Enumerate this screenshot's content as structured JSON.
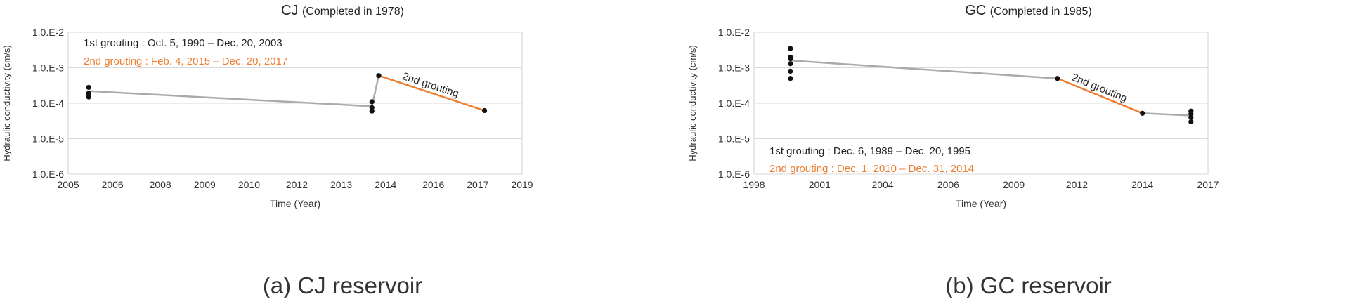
{
  "chart_data": [
    {
      "type": "line",
      "title": "CJ",
      "subtitle": "(Completed in 1978)",
      "caption": "(a) CJ reservoir",
      "xlabel": "Time (Year)",
      "ylabel": "Hydraulic conductivity (cm/s)",
      "x_ticks": [
        "2005",
        "2006",
        "2008",
        "2009",
        "2010",
        "2012",
        "2013",
        "2014",
        "2016",
        "2017",
        "2019"
      ],
      "y_ticks": [
        "1.0.E-6",
        "1.0.E-5",
        "1.0.E-4",
        "1.0.E-3",
        "1.0.E-2"
      ],
      "y_scale": "log",
      "ylim": [
        1e-06,
        0.01
      ],
      "grid": "horizontal",
      "annotation_lines": [
        {
          "text": "1st grouting : Oct. 5, 1990 – Dec. 20, 2003",
          "color": "#222222"
        },
        {
          "text": "2nd grouting : Feb. 4, 2015 – Dec. 20, 2017",
          "color": "#ed7d31"
        }
      ],
      "segment_label": "2nd grouting",
      "points": [
        {
          "x": "2005.6",
          "y": 0.00028
        },
        {
          "x": "2005.6",
          "y": 0.00019
        },
        {
          "x": "2005.6",
          "y": 0.00015
        },
        {
          "x": "2013.9",
          "y": 0.00011
        },
        {
          "x": "2013.9",
          "y": 7.5e-05
        },
        {
          "x": "2013.9",
          "y": 6e-05
        },
        {
          "x": "2014.1",
          "y": 0.0006
        },
        {
          "x": "2017.2",
          "y": 6.2e-05
        }
      ],
      "series": [
        {
          "color": "#aaaaaa",
          "points": [
            [
              "2005.6",
              0.00022
            ],
            [
              "2013.9",
              8.2e-05
            ],
            [
              "2014.1",
              0.0006
            ]
          ]
        },
        {
          "color": "#ed7d31",
          "points": [
            [
              "2014.1",
              0.0006
            ],
            [
              "2017.2",
              6.2e-05
            ]
          ]
        }
      ]
    },
    {
      "type": "line",
      "title": "GC",
      "subtitle": "(Completed in 1985)",
      "caption": "(b) GC reservoir",
      "xlabel": "Time (Year)",
      "ylabel": "Hydraulic conductivity (cm/s)",
      "x_ticks": [
        "1998",
        "2001",
        "2004",
        "2006",
        "2009",
        "2012",
        "2014",
        "2017"
      ],
      "y_ticks": [
        "1.0.E-6",
        "1.0.E-5",
        "1.0.E-4",
        "1.0.E-3",
        "1.0.E-2"
      ],
      "y_scale": "log",
      "ylim": [
        1e-06,
        0.01
      ],
      "grid": "horizontal",
      "annotation_lines": [
        {
          "text": "1st grouting : Dec. 6, 1989 – Dec. 20, 1995",
          "color": "#222222"
        },
        {
          "text": "2nd grouting : Dec. 1, 2010 – Dec. 31, 2014",
          "color": "#ed7d31"
        }
      ],
      "segment_label": "2nd grouting",
      "points": [
        {
          "x": "1999.5",
          "y": 0.0035
        },
        {
          "x": "1999.5",
          "y": 0.002
        },
        {
          "x": "1999.5",
          "y": 0.0018
        },
        {
          "x": "1999.5",
          "y": 0.0013
        },
        {
          "x": "1999.5",
          "y": 0.0008
        },
        {
          "x": "1999.5",
          "y": 0.0005
        },
        {
          "x": "2010.5",
          "y": 0.0005
        },
        {
          "x": "2014.0",
          "y": 5.2e-05
        },
        {
          "x": "2016.0",
          "y": 6e-05
        },
        {
          "x": "2016.0",
          "y": 5e-05
        },
        {
          "x": "2016.0",
          "y": 4e-05
        },
        {
          "x": "2016.0",
          "y": 3e-05
        }
      ],
      "series": [
        {
          "color": "#aaaaaa",
          "points": [
            [
              "1999.5",
              0.0016
            ],
            [
              "2010.5",
              0.0005
            ]
          ]
        },
        {
          "color": "#ed7d31",
          "points": [
            [
              "2010.5",
              0.0005
            ],
            [
              "2014.0",
              5.2e-05
            ]
          ]
        },
        {
          "color": "#aaaaaa",
          "points": [
            [
              "2014.0",
              5.2e-05
            ],
            [
              "2016.0",
              4.5e-05
            ]
          ]
        }
      ]
    }
  ]
}
